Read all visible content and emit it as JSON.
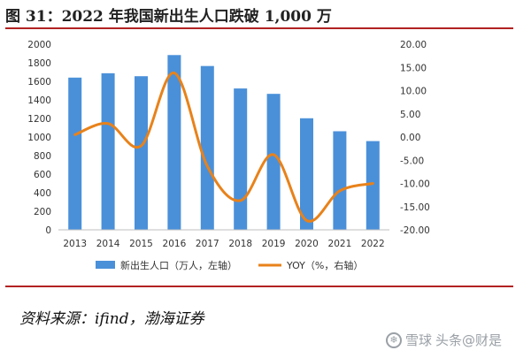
{
  "header": {
    "title": "图 31：2022 年我国新出生人口跌破 1,000 万"
  },
  "footer": {
    "source": "资料来源：ifind，渤海证券"
  },
  "watermark": {
    "brand": "雪球",
    "account": "头条@财是",
    "icon": "snowball-logo-icon"
  },
  "chart_data": {
    "type": "bar",
    "categories": [
      "2013",
      "2014",
      "2015",
      "2016",
      "2017",
      "2018",
      "2019",
      "2020",
      "2021",
      "2022"
    ],
    "series": [
      {
        "name": "新出生人口（万人，左轴）",
        "type": "bar",
        "axis": "left",
        "color": "#4a90d9",
        "values": [
          1640,
          1687,
          1655,
          1883,
          1765,
          1523,
          1465,
          1202,
          1062,
          956
        ]
      },
      {
        "name": "YOY（%，右轴）",
        "type": "line",
        "axis": "right",
        "color": "#e8821a",
        "values": [
          0.5,
          2.9,
          -1.9,
          13.8,
          -6.3,
          -13.7,
          -3.8,
          -18.0,
          -11.6,
          -10.0
        ]
      }
    ],
    "y_left": {
      "ylim": [
        0,
        2000
      ],
      "ticks": [
        "0",
        "200",
        "400",
        "600",
        "800",
        "1000",
        "1200",
        "1400",
        "1600",
        "1800",
        "2000"
      ]
    },
    "y_right": {
      "ylim": [
        -20,
        20
      ],
      "ticks": [
        "-20.00",
        "-15.00",
        "-10.00",
        "-5.00",
        "0.00",
        "5.00",
        "10.00",
        "15.00",
        "20.00"
      ]
    },
    "grid": false,
    "legend": "bottom"
  }
}
